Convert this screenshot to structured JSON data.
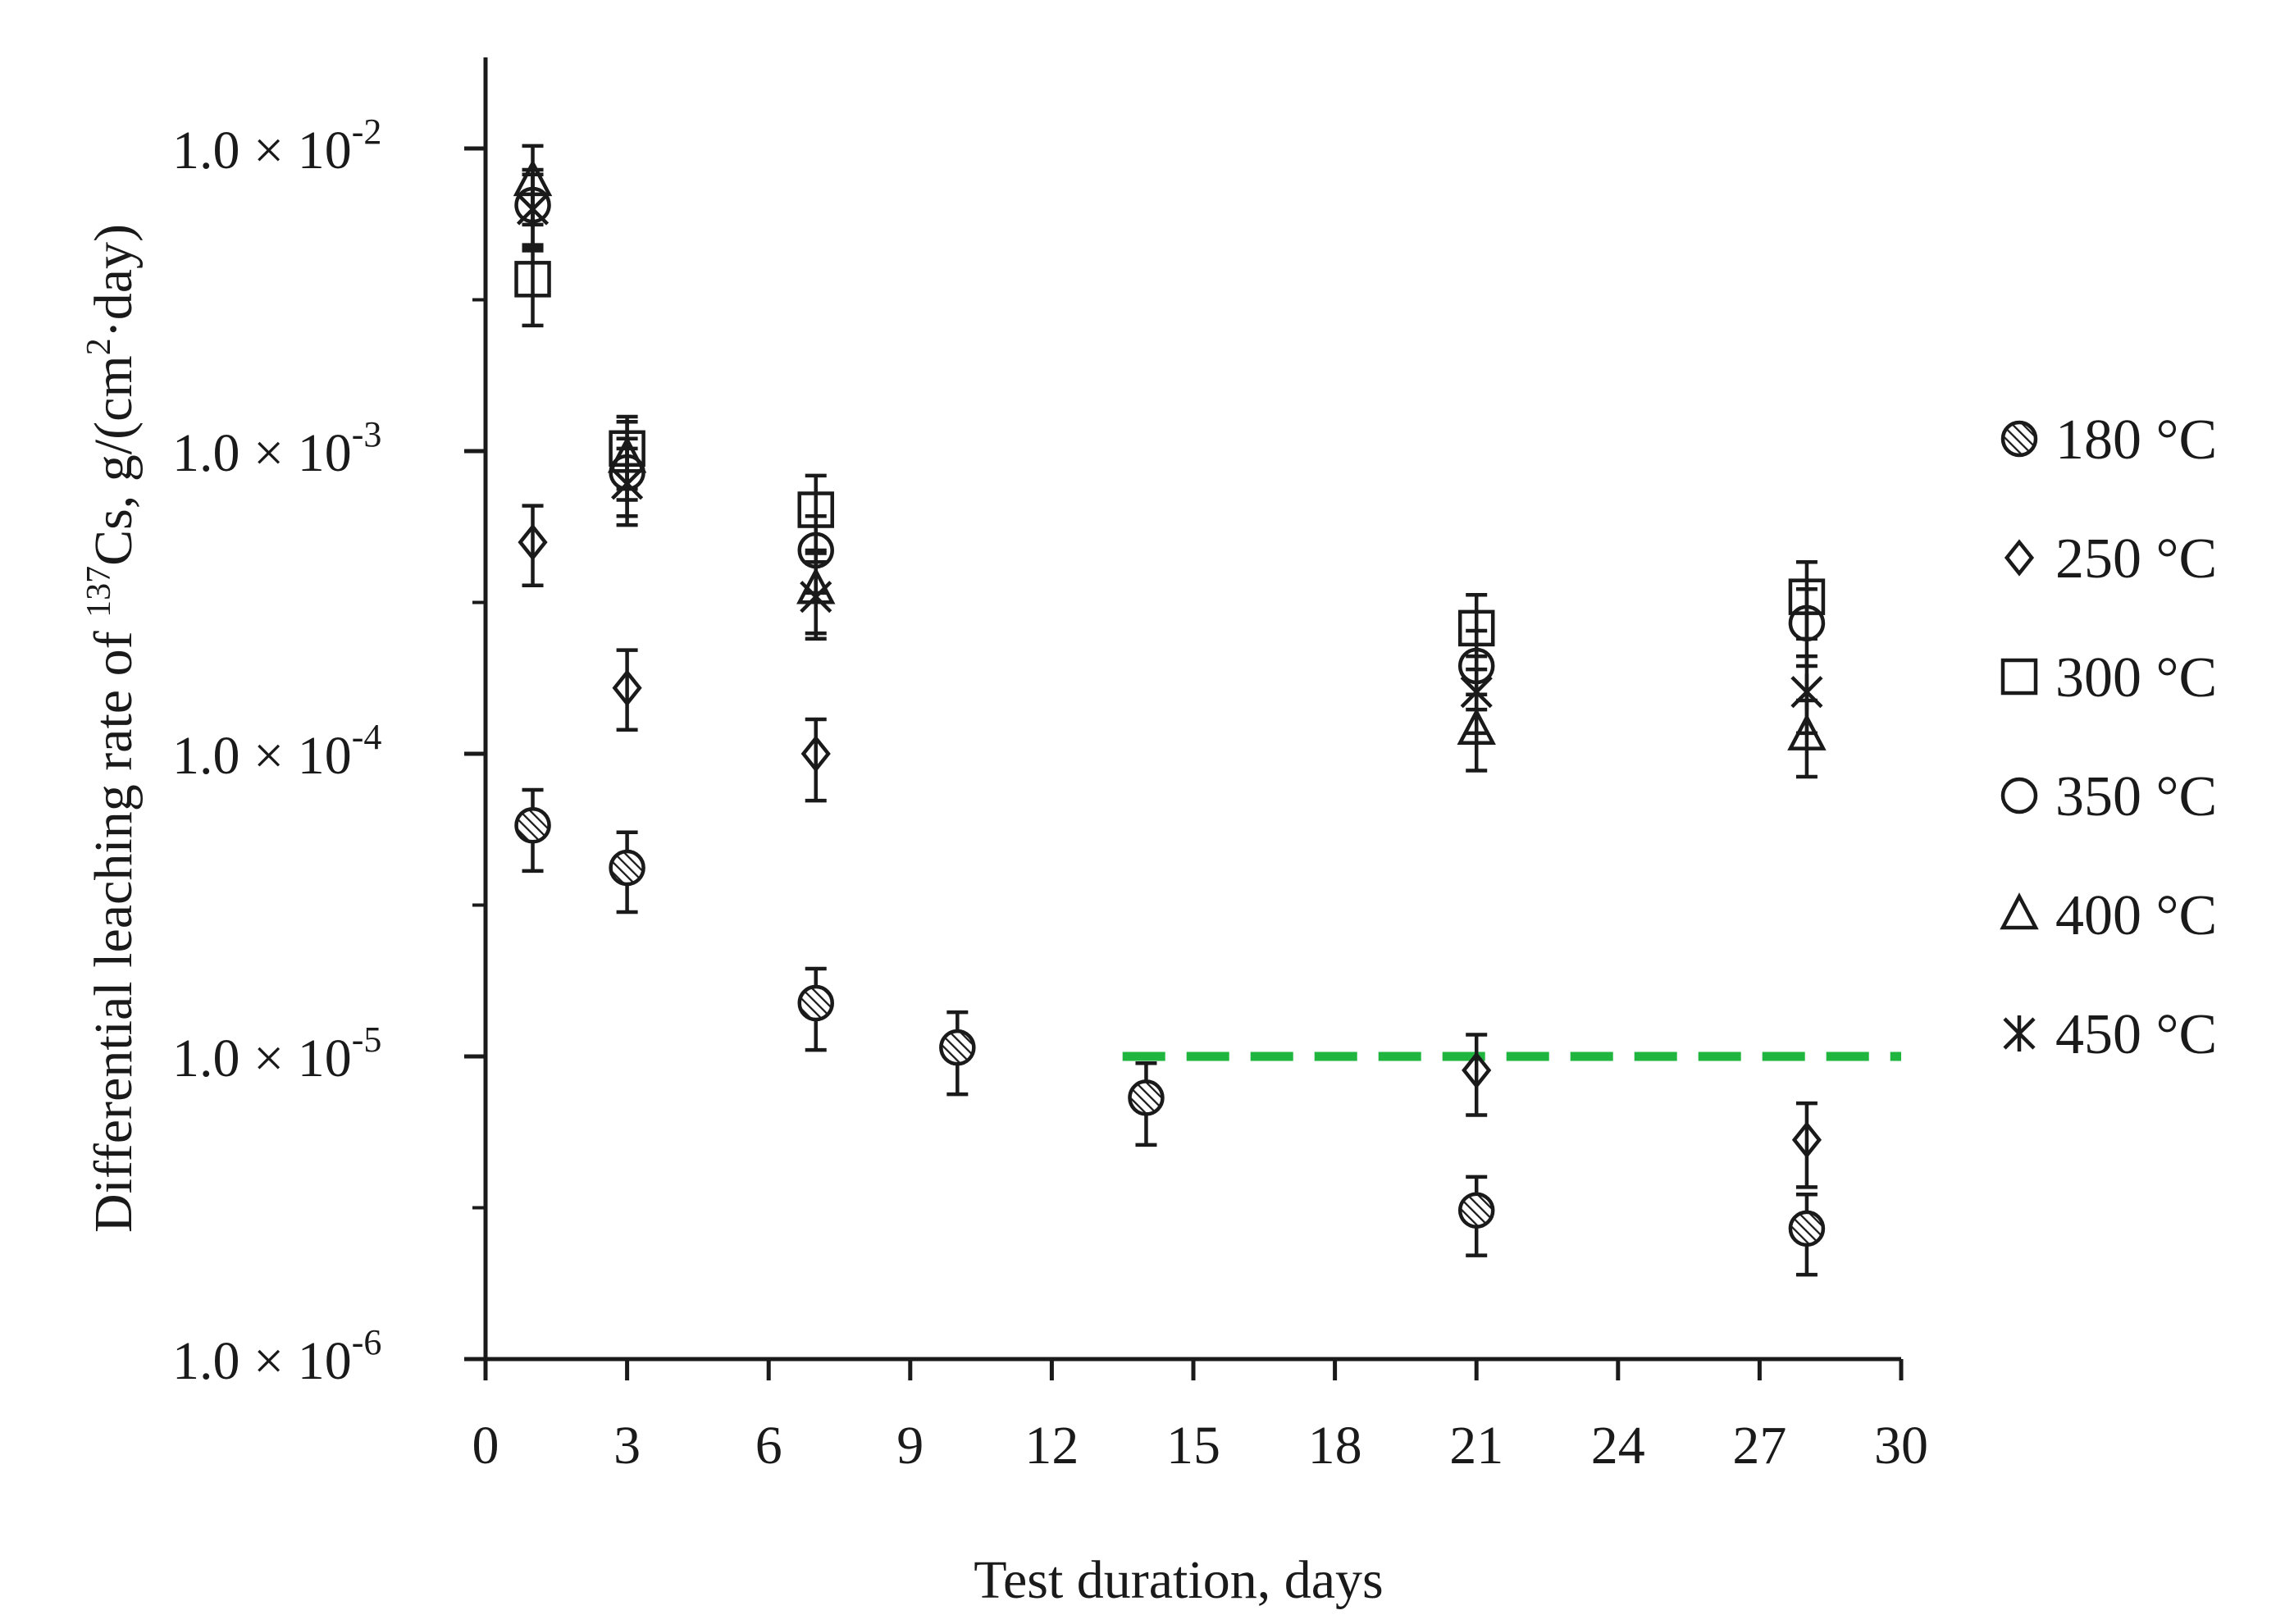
{
  "chart_data": {
    "type": "scatter",
    "xlabel": "Test duration, days",
    "ylabel": {
      "prefix": "Differential leaching rate of ",
      "isotope_mass": "137",
      "element": "Cs, g/(cm",
      "exponent": "2",
      "suffix": "·day)"
    },
    "x_ticks": [
      0,
      3,
      6,
      9,
      12,
      15,
      18,
      21,
      24,
      27,
      30
    ],
    "xlim": [
      0,
      30
    ],
    "y_scale": "log",
    "ylim": [
      1e-06,
      0.02
    ],
    "y_ticks": [
      {
        "value": 0.01,
        "mantissa": "1.0 × 10",
        "exponent": "-2"
      },
      {
        "value": 0.001,
        "mantissa": "1.0 × 10",
        "exponent": "-3"
      },
      {
        "value": 0.0001,
        "mantissa": "1.0 × 10",
        "exponent": "-4"
      },
      {
        "value": 1e-05,
        "mantissa": "1.0 × 10",
        "exponent": "-5"
      },
      {
        "value": 1e-06,
        "mantissa": "1.0 × 10",
        "exponent": "-6"
      }
    ],
    "grid": false,
    "legend_position": "right",
    "reference_line": {
      "y": 1e-05,
      "x_range": [
        13.5,
        30
      ],
      "style": "dashed",
      "color": "#1fb53f"
    },
    "series": [
      {
        "name": "180 °C",
        "marker": "hatched-circle",
        "points": [
          {
            "x": 1,
            "y": 5.8e-05,
            "err_lo": 4.1e-05,
            "err_hi": 7.6e-05
          },
          {
            "x": 3,
            "y": 4.2e-05,
            "err_lo": 3e-05,
            "err_hi": 5.5e-05
          },
          {
            "x": 7,
            "y": 1.5e-05,
            "err_lo": 1.05e-05,
            "err_hi": 1.95e-05
          },
          {
            "x": 10,
            "y": 1.07e-05,
            "err_lo": 7.5e-06,
            "err_hi": 1.4e-05
          },
          {
            "x": 14,
            "y": 7.3e-06,
            "err_lo": 5.1e-06,
            "err_hi": 9.5e-06
          },
          {
            "x": 21,
            "y": 3.1e-06,
            "err_lo": 2.2e-06,
            "err_hi": 4e-06
          },
          {
            "x": 28,
            "y": 2.7e-06,
            "err_lo": 1.9e-06,
            "err_hi": 3.5e-06
          }
        ]
      },
      {
        "name": "250 °C",
        "marker": "diamond",
        "points": [
          {
            "x": 1,
            "y": 0.0005,
            "err_lo": 0.00036,
            "err_hi": 0.00066
          },
          {
            "x": 3,
            "y": 0.000165,
            "err_lo": 0.00012,
            "err_hi": 0.00022
          },
          {
            "x": 7,
            "y": 0.0001,
            "err_lo": 7e-05,
            "err_hi": 0.00013
          },
          {
            "x": 21,
            "y": 9e-06,
            "err_lo": 6.4e-06,
            "err_hi": 1.18e-05
          },
          {
            "x": 28,
            "y": 5.3e-06,
            "err_lo": 3.7e-06,
            "err_hi": 7e-06
          }
        ]
      },
      {
        "name": "300 °C",
        "marker": "square",
        "points": [
          {
            "x": 1,
            "y": 0.0037,
            "err_lo": 0.0026,
            "err_hi": 0.0048
          },
          {
            "x": 3,
            "y": 0.00102,
            "err_lo": 0.00075,
            "err_hi": 0.0013
          },
          {
            "x": 7,
            "y": 0.00064,
            "err_lo": 0.00047,
            "err_hi": 0.00083
          },
          {
            "x": 21,
            "y": 0.00026,
            "err_lo": 0.00019,
            "err_hi": 0.000335
          },
          {
            "x": 28,
            "y": 0.00033,
            "err_lo": 0.00024,
            "err_hi": 0.00043
          }
        ]
      },
      {
        "name": "350 °C",
        "marker": "circle",
        "points": [
          {
            "x": 1,
            "y": 0.0065,
            "err_lo": 0.0047,
            "err_hi": 0.0085
          },
          {
            "x": 3,
            "y": 0.00085,
            "err_lo": 0.00061,
            "err_hi": 0.0011
          },
          {
            "x": 7,
            "y": 0.00047,
            "err_lo": 0.00034,
            "err_hi": 0.00061
          },
          {
            "x": 21,
            "y": 0.000195,
            "err_lo": 0.00014,
            "err_hi": 0.000255
          },
          {
            "x": 28,
            "y": 0.00027,
            "err_lo": 0.000195,
            "err_hi": 0.00035
          }
        ]
      },
      {
        "name": "400 °C",
        "marker": "triangle",
        "points": [
          {
            "x": 1,
            "y": 0.0078,
            "err_lo": 0.0056,
            "err_hi": 0.0102
          },
          {
            "x": 3,
            "y": 0.00095,
            "err_lo": 0.00069,
            "err_hi": 0.00125
          },
          {
            "x": 7,
            "y": 0.00035,
            "err_lo": 0.00025,
            "err_hi": 0.00046
          },
          {
            "x": 21,
            "y": 0.00012,
            "err_lo": 8.8e-05,
            "err_hi": 0.000157
          },
          {
            "x": 28,
            "y": 0.000115,
            "err_lo": 8.4e-05,
            "err_hi": 0.00015
          }
        ]
      },
      {
        "name": "450 °C",
        "marker": "asterisk",
        "points": [
          {
            "x": 1,
            "y": 0.0063,
            "err_lo": 0.0046,
            "err_hi": 0.0082
          },
          {
            "x": 3,
            "y": 0.00078,
            "err_lo": 0.00057,
            "err_hi": 0.00102
          },
          {
            "x": 7,
            "y": 0.00033,
            "err_lo": 0.00024,
            "err_hi": 0.00043
          },
          {
            "x": 21,
            "y": 0.00016,
            "err_lo": 0.000117,
            "err_hi": 0.00021
          },
          {
            "x": 28,
            "y": 0.00016,
            "err_lo": 0.000117,
            "err_hi": 0.00021
          }
        ]
      }
    ]
  }
}
